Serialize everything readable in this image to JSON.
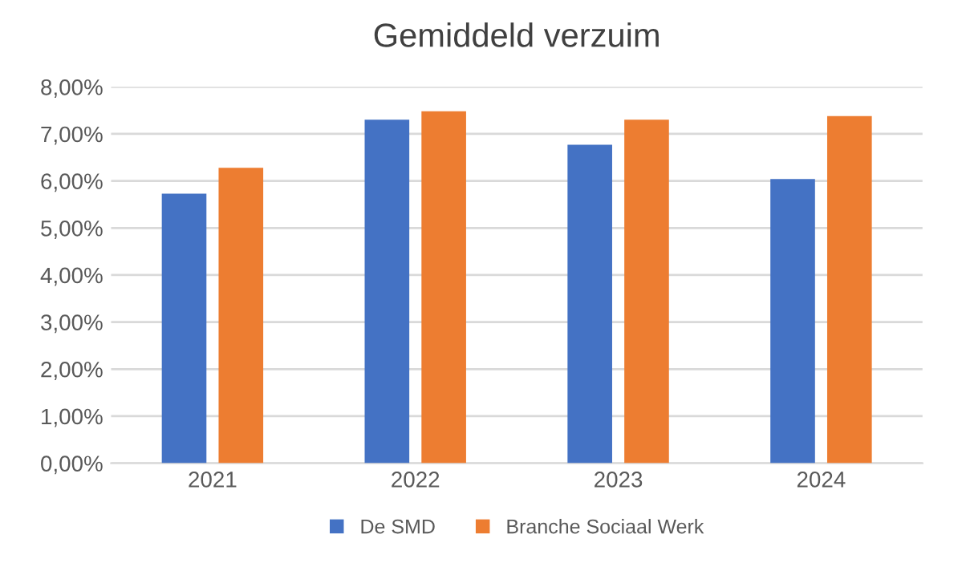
{
  "chart_data": {
    "type": "bar",
    "title": "Gemiddeld verzuim",
    "categories": [
      "2021",
      "2022",
      "2023",
      "2024"
    ],
    "series": [
      {
        "name": "De SMD",
        "color": "#4472c4",
        "values": [
          5.73,
          7.3,
          6.77,
          6.04
        ]
      },
      {
        "name": "Branche Sociaal Werk",
        "color": "#ed7d31",
        "values": [
          6.28,
          7.48,
          7.3,
          7.38
        ]
      }
    ],
    "ylim": [
      0,
      8
    ],
    "yticks": [
      {
        "value": 0,
        "label": "0,00%"
      },
      {
        "value": 1,
        "label": "1,00%"
      },
      {
        "value": 2,
        "label": "2,00%"
      },
      {
        "value": 3,
        "label": "3,00%"
      },
      {
        "value": 4,
        "label": "4,00%"
      },
      {
        "value": 5,
        "label": "5,00%"
      },
      {
        "value": 6,
        "label": "6,00%"
      },
      {
        "value": 7,
        "label": "7,00%"
      },
      {
        "value": 8,
        "label": "8,00%"
      }
    ],
    "grid": "y",
    "legend": "bottom"
  }
}
